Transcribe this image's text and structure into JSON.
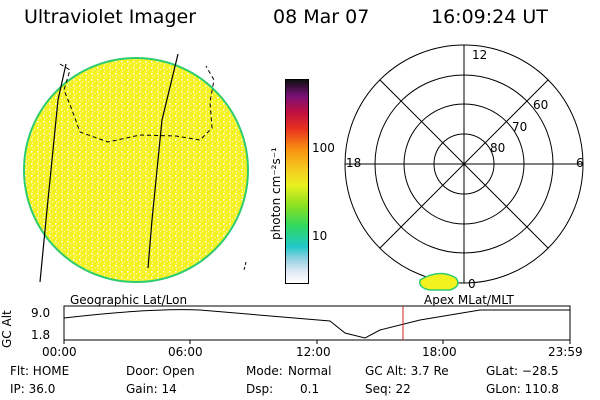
{
  "header": {
    "title": "Ultraviolet Imager",
    "date": "08 Mar 07",
    "time": "16:09:24 UT"
  },
  "colorbar": {
    "unit_label": "photon cm⁻²s⁻¹",
    "tick_100": "100",
    "tick_10": "10"
  },
  "polar": {
    "mlt_12": "12",
    "mlt_18": "18",
    "mlt_6": "6",
    "mlt_0": "0",
    "lat_60": "60",
    "lat_70": "70",
    "lat_80": "80"
  },
  "timeline": {
    "left_label": "Geographic Lat/Lon",
    "right_label": "Apex MLat/MLT",
    "y_label": "GC Alt",
    "y_top": "9.0",
    "y_bottom": "1.8",
    "x_ticks": [
      "00:00",
      "06:00",
      "12:00",
      "18:00",
      "23:59"
    ]
  },
  "status": {
    "flt": "Flt: HOME",
    "ip": "IP: 36.0",
    "door": "Door: Open",
    "gain": "Gain: 14",
    "mode_label": "Mode:",
    "mode_value": "Normal",
    "dsp_label": "Dsp:",
    "dsp_value": "0.1",
    "gc_alt": "GC Alt: 3.7 Re",
    "seq": "Seq: 22",
    "glat": "GLat: −28.5",
    "glon": "GLon: 110.8"
  },
  "colors": {
    "disk_fill": "#f4f21e",
    "disk_rim": "#2ecc71",
    "marker": "#cc2222"
  }
}
